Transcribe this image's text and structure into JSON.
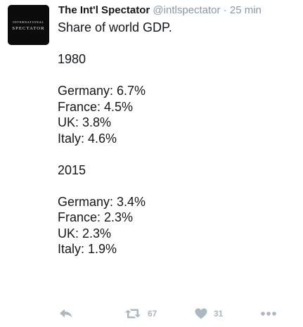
{
  "avatar": {
    "line1": "INTERNATIONAL",
    "line2": "SPECTATOR"
  },
  "tweet": {
    "fullname": "The Int'l Spectator",
    "username": "@intlspectator",
    "separator": "·",
    "timestamp": "25 min",
    "lines": [
      "Share of world GDP.",
      "",
      "1980",
      "",
      "Germany: 6.7%",
      "France: 4.5%",
      "UK: 3.8%",
      "Italy: 4.6%",
      "",
      "2015",
      "",
      "Germany: 3.4%",
      "France: 2.3%",
      "UK: 2.3%",
      "Italy: 1.9%"
    ]
  },
  "actions": {
    "reply_icon": "reply-icon",
    "retweet_icon": "retweet-icon",
    "retweet_count": "67",
    "like_icon": "heart-icon",
    "like_count": "31",
    "more_icon": "more-dots-icon"
  },
  "colors": {
    "text": "#14171a",
    "muted": "#8899a6",
    "icon": "#aab8c2"
  }
}
